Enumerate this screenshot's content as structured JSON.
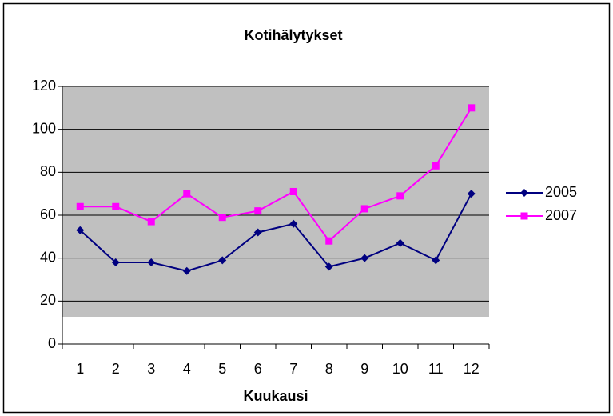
{
  "chart_data": {
    "type": "line",
    "title": "Kotihälytykset",
    "x_label": "Kuukausi",
    "categories": [
      "1",
      "2",
      "3",
      "4",
      "5",
      "6",
      "7",
      "8",
      "9",
      "10",
      "11",
      "12"
    ],
    "series": [
      {
        "name": "2005",
        "color": "#000080",
        "marker": "diamond",
        "values": [
          53,
          38,
          38,
          34,
          39,
          52,
          56,
          36,
          40,
          47,
          39,
          70
        ]
      },
      {
        "name": "2007",
        "color": "#ff00ff",
        "marker": "square",
        "values": [
          64,
          64,
          57,
          70,
          59,
          62,
          71,
          48,
          63,
          69,
          83,
          110
        ]
      }
    ],
    "ylim": [
      0,
      120
    ],
    "yticks": [
      0,
      20,
      40,
      60,
      80,
      100,
      120
    ],
    "grid": true,
    "legend": "right"
  }
}
